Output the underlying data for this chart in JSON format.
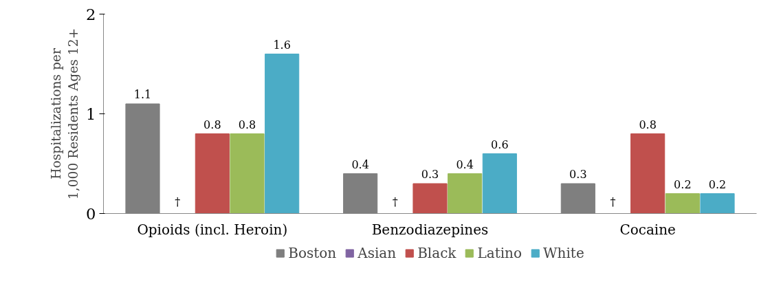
{
  "chart_data": {
    "type": "bar",
    "ylabel": "Hospitalizations per\n1,000 Residents Ages 12+",
    "categories": [
      "Opioids (incl. Heroin)",
      "Benzodiazepines",
      "Cocaine"
    ],
    "series": [
      {
        "name": "Boston",
        "color": "#7f7f7f",
        "values": [
          1.1,
          0.4,
          0.3
        ]
      },
      {
        "name": "Asian",
        "color": "#8064a2",
        "values": [
          null,
          null,
          null
        ],
        "value_labels": [
          "†",
          "†",
          "†"
        ]
      },
      {
        "name": "Black",
        "color": "#c0504d",
        "values": [
          0.8,
          0.3,
          0.8
        ]
      },
      {
        "name": "Latino",
        "color": "#9bbb59",
        "values": [
          0.8,
          0.4,
          0.2
        ]
      },
      {
        "name": "White",
        "color": "#4bacc6",
        "values": [
          1.6,
          0.6,
          0.2
        ]
      }
    ],
    "ylim": [
      0,
      2
    ],
    "yticks": [
      0,
      1,
      2
    ],
    "data_labels": true,
    "grid": false,
    "legend": "bottom"
  }
}
